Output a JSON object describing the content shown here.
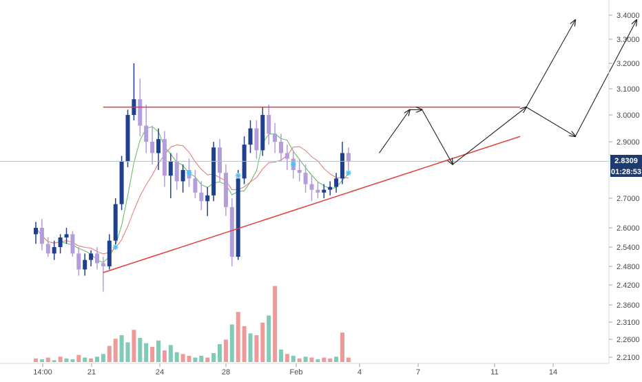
{
  "chart_data": {
    "type": "candlestick",
    "title": "",
    "colors": {
      "up_candle": "#1f3f8f",
      "down_candle": "#b39ddb",
      "volume_up": "#7fcbb5",
      "volume_down": "#ef9a9a",
      "ma_fast": "#5cb85c",
      "ma_slow": "#e57373",
      "trendline": "#e53935",
      "signal_marker": "#4fc3f7",
      "forecast_arrow": "#222222",
      "price_tag_bg": "#1f3a6e",
      "price_line": "#b0bec5"
    },
    "y_axis": {
      "position": "right",
      "ticks": [
        "3.4000",
        "3.3000",
        "3.2000",
        "3.1000",
        "3.0000",
        "2.9000",
        "2.7000",
        "2.6000",
        "2.5400",
        "2.4800",
        "2.4200",
        "2.3600",
        "2.3100",
        "2.2600",
        "2.2100"
      ]
    },
    "x_axis": {
      "ticks": [
        "14:00",
        "21",
        "24",
        "28",
        "Feb",
        "4",
        "7",
        "11",
        "14"
      ]
    },
    "last_price": "2.8309",
    "countdown": "01:28:53",
    "resistance_line": {
      "from": {
        "bar": 11,
        "price": 3.03
      },
      "to": {
        "bar": 79,
        "price": 3.03
      }
    },
    "support_line": {
      "from": {
        "bar": 11,
        "price": 2.46
      },
      "to": {
        "bar": 79,
        "price": 2.92
      }
    },
    "forecast_paths": [
      [
        [
          56,
          2.86
        ],
        [
          61,
          3.02
        ],
        [
          63,
          3.02
        ],
        [
          68,
          2.82
        ],
        [
          80,
          3.03
        ],
        [
          88,
          3.38
        ]
      ],
      [
        [
          80,
          3.03
        ],
        [
          88,
          2.92
        ]
      ],
      [
        [
          88,
          2.92
        ],
        [
          98,
          3.38
        ]
      ]
    ],
    "candles": [
      [
        2.58,
        2.62,
        2.55,
        2.6
      ],
      [
        2.6,
        2.63,
        2.53,
        2.55
      ],
      [
        2.55,
        2.57,
        2.51,
        2.52
      ],
      [
        2.52,
        2.56,
        2.5,
        2.54
      ],
      [
        2.54,
        2.58,
        2.52,
        2.57
      ],
      [
        2.57,
        2.6,
        2.55,
        2.58
      ],
      [
        2.58,
        2.59,
        2.51,
        2.52
      ],
      [
        2.52,
        2.54,
        2.45,
        2.47
      ],
      [
        2.47,
        2.52,
        2.45,
        2.5
      ],
      [
        2.5,
        2.53,
        2.48,
        2.52
      ],
      [
        2.52,
        2.54,
        2.47,
        2.49
      ],
      [
        2.49,
        2.51,
        2.4,
        2.48
      ],
      [
        2.48,
        2.58,
        2.47,
        2.56
      ],
      [
        2.56,
        2.7,
        2.54,
        2.68
      ],
      [
        2.68,
        2.85,
        2.66,
        2.83
      ],
      [
        2.83,
        3.02,
        2.81,
        3.0
      ],
      [
        3.0,
        3.2,
        2.98,
        3.06
      ],
      [
        3.06,
        3.14,
        2.92,
        2.96
      ],
      [
        2.96,
        3.04,
        2.86,
        2.9
      ],
      [
        2.9,
        2.96,
        2.82,
        2.86
      ],
      [
        2.86,
        2.95,
        2.8,
        2.91
      ],
      [
        2.91,
        2.94,
        2.74,
        2.78
      ],
      [
        2.78,
        2.86,
        2.7,
        2.83
      ],
      [
        2.83,
        2.86,
        2.73,
        2.76
      ],
      [
        2.76,
        2.82,
        2.72,
        2.8
      ],
      [
        2.8,
        2.84,
        2.74,
        2.77
      ],
      [
        2.77,
        2.8,
        2.7,
        2.72
      ],
      [
        2.72,
        2.76,
        2.66,
        2.69
      ],
      [
        2.69,
        2.74,
        2.64,
        2.71
      ],
      [
        2.71,
        2.9,
        2.69,
        2.88
      ],
      [
        2.88,
        2.91,
        2.76,
        2.79
      ],
      [
        2.79,
        2.82,
        2.64,
        2.67
      ],
      [
        2.67,
        2.7,
        2.48,
        2.51
      ],
      [
        2.51,
        2.8,
        2.5,
        2.77
      ],
      [
        2.77,
        2.92,
        2.75,
        2.89
      ],
      [
        2.89,
        2.98,
        2.86,
        2.95
      ],
      [
        2.95,
        2.98,
        2.84,
        2.87
      ],
      [
        2.87,
        3.03,
        2.85,
        3.0
      ],
      [
        3.0,
        3.04,
        2.89,
        2.93
      ],
      [
        2.93,
        2.97,
        2.86,
        2.9
      ],
      [
        2.9,
        2.93,
        2.83,
        2.86
      ],
      [
        2.86,
        2.89,
        2.8,
        2.84
      ],
      [
        2.84,
        2.87,
        2.77,
        2.8
      ],
      [
        2.8,
        2.84,
        2.76,
        2.79
      ],
      [
        2.79,
        2.82,
        2.72,
        2.75
      ],
      [
        2.75,
        2.78,
        2.69,
        2.73
      ],
      [
        2.73,
        2.76,
        2.7,
        2.72
      ],
      [
        2.72,
        2.75,
        2.7,
        2.73
      ],
      [
        2.73,
        2.76,
        2.71,
        2.74
      ],
      [
        2.74,
        2.79,
        2.72,
        2.77
      ],
      [
        2.77,
        2.9,
        2.75,
        2.86
      ],
      [
        2.86,
        2.88,
        2.8,
        2.83
      ]
    ],
    "volumes": [
      [
        0.04,
        0
      ],
      [
        0.03,
        1
      ],
      [
        0.05,
        0
      ],
      [
        0.02,
        1
      ],
      [
        0.06,
        0
      ],
      [
        0.04,
        1
      ],
      [
        0.03,
        1
      ],
      [
        0.08,
        0
      ],
      [
        0.05,
        1
      ],
      [
        0.04,
        0
      ],
      [
        0.06,
        1
      ],
      [
        0.09,
        1
      ],
      [
        0.18,
        0
      ],
      [
        0.26,
        0
      ],
      [
        0.3,
        1
      ],
      [
        0.22,
        1
      ],
      [
        0.36,
        0
      ],
      [
        0.27,
        1
      ],
      [
        0.21,
        1
      ],
      [
        0.17,
        0
      ],
      [
        0.24,
        1
      ],
      [
        0.13,
        0
      ],
      [
        0.19,
        1
      ],
      [
        0.11,
        1
      ],
      [
        0.09,
        0
      ],
      [
        0.07,
        0
      ],
      [
        0.05,
        1
      ],
      [
        0.07,
        1
      ],
      [
        0.05,
        0
      ],
      [
        0.1,
        1
      ],
      [
        0.2,
        1
      ],
      [
        0.25,
        0
      ],
      [
        0.42,
        1
      ],
      [
        0.56,
        0
      ],
      [
        0.4,
        0
      ],
      [
        0.32,
        1
      ],
      [
        0.3,
        0
      ],
      [
        0.44,
        0
      ],
      [
        0.52,
        1
      ],
      [
        0.85,
        0
      ],
      [
        0.14,
        1
      ],
      [
        0.09,
        0
      ],
      [
        0.07,
        1
      ],
      [
        0.04,
        0
      ],
      [
        0.06,
        1
      ],
      [
        0.05,
        0
      ],
      [
        0.03,
        1
      ],
      [
        0.05,
        0
      ],
      [
        0.04,
        0
      ],
      [
        0.06,
        1
      ],
      [
        0.33,
        0
      ],
      [
        0.05,
        0
      ]
    ]
  }
}
